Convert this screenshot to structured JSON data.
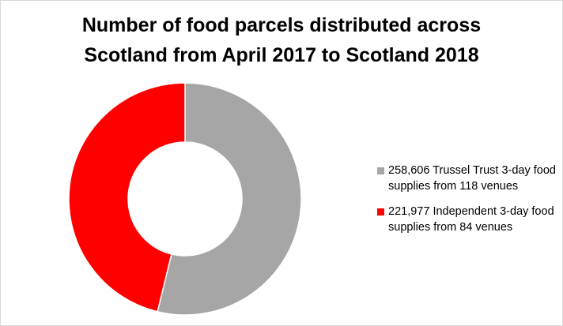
{
  "chart_data": {
    "type": "pie",
    "variant": "donut",
    "title_lines": [
      "Number of food parcels distributed across",
      "Scotland from April 2017 to Scotland 2018"
    ],
    "slices": [
      {
        "label": "258,606 Trussel Trust 3-day food supplies from 118 venues",
        "value": 258606,
        "color": "#a6a6a6"
      },
      {
        "label": "221,977 Independent 3-day food supplies from 84 venues",
        "value": 221977,
        "color": "#ff0000"
      }
    ],
    "legend_position": "right"
  }
}
